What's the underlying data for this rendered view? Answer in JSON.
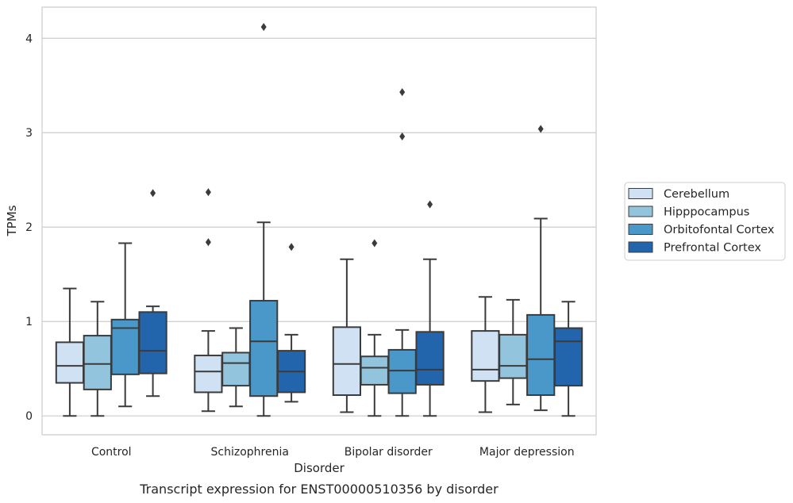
{
  "chart_data": {
    "type": "box",
    "title": "",
    "caption": "Transcript expression for ENST00000510356 by disorder",
    "xlabel": "Disorder",
    "ylabel": "TPMs",
    "ylim": [
      -0.2,
      4.33
    ],
    "yticks": [
      0,
      1,
      2,
      3,
      4
    ],
    "grid": "horizontal",
    "legend_position": "right",
    "categories": [
      "Control",
      "Schizophrenia",
      "Bipolar disorder",
      "Major depression"
    ],
    "series": [
      {
        "name": "Cerebellum",
        "color": "#cfe1f2",
        "boxes": [
          {
            "whisker_low": 0.0,
            "q1": 0.35,
            "median": 0.53,
            "q3": 0.78,
            "whisker_high": 1.35,
            "outliers": []
          },
          {
            "whisker_low": 0.05,
            "q1": 0.25,
            "median": 0.47,
            "q3": 0.64,
            "whisker_high": 0.9,
            "outliers": [
              2.37,
              1.84
            ]
          },
          {
            "whisker_low": 0.04,
            "q1": 0.22,
            "median": 0.55,
            "q3": 0.94,
            "whisker_high": 1.66,
            "outliers": []
          },
          {
            "whisker_low": 0.04,
            "q1": 0.37,
            "median": 0.49,
            "q3": 0.9,
            "whisker_high": 1.26,
            "outliers": []
          }
        ]
      },
      {
        "name": "Hipppocampus",
        "color": "#93c4de",
        "boxes": [
          {
            "whisker_low": 0.0,
            "q1": 0.28,
            "median": 0.55,
            "q3": 0.85,
            "whisker_high": 1.21,
            "outliers": []
          },
          {
            "whisker_low": 0.1,
            "q1": 0.32,
            "median": 0.56,
            "q3": 0.67,
            "whisker_high": 0.93,
            "outliers": []
          },
          {
            "whisker_low": 0.0,
            "q1": 0.33,
            "median": 0.51,
            "q3": 0.63,
            "whisker_high": 0.86,
            "outliers": [
              1.83
            ]
          },
          {
            "whisker_low": 0.12,
            "q1": 0.4,
            "median": 0.53,
            "q3": 0.86,
            "whisker_high": 1.23,
            "outliers": []
          }
        ]
      },
      {
        "name": "Orbitofontal Cortex",
        "color": "#4a98c9",
        "boxes": [
          {
            "whisker_low": 0.1,
            "q1": 0.44,
            "median": 0.93,
            "q3": 1.02,
            "whisker_high": 1.83,
            "outliers": []
          },
          {
            "whisker_low": 0.0,
            "q1": 0.21,
            "median": 0.79,
            "q3": 1.22,
            "whisker_high": 2.05,
            "outliers": [
              4.12
            ]
          },
          {
            "whisker_low": 0.0,
            "q1": 0.24,
            "median": 0.48,
            "q3": 0.7,
            "whisker_high": 0.91,
            "outliers": [
              3.43,
              2.96
            ]
          },
          {
            "whisker_low": 0.06,
            "q1": 0.22,
            "median": 0.6,
            "q3": 1.07,
            "whisker_high": 2.09,
            "outliers": [
              3.04
            ]
          }
        ]
      },
      {
        "name": "Prefrontal Cortex",
        "color": "#2265ad",
        "boxes": [
          {
            "whisker_low": 0.21,
            "q1": 0.45,
            "median": 0.69,
            "q3": 1.1,
            "whisker_high": 1.16,
            "outliers": [
              2.36
            ]
          },
          {
            "whisker_low": 0.15,
            "q1": 0.25,
            "median": 0.47,
            "q3": 0.69,
            "whisker_high": 0.86,
            "outliers": [
              1.79
            ]
          },
          {
            "whisker_low": 0.0,
            "q1": 0.33,
            "median": 0.49,
            "q3": 0.89,
            "whisker_high": 1.66,
            "outliers": [
              2.24
            ]
          },
          {
            "whisker_low": 0.0,
            "q1": 0.32,
            "median": 0.79,
            "q3": 0.93,
            "whisker_high": 1.21,
            "outliers": []
          }
        ]
      }
    ]
  }
}
